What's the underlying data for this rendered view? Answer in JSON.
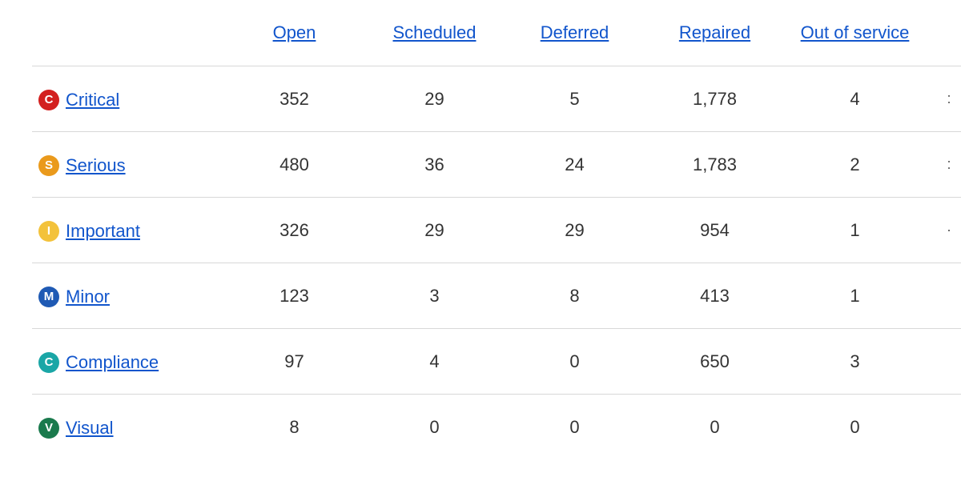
{
  "link_color": "#1155cc",
  "border_color": "#d8d8d8",
  "text_color": "#333333",
  "columns": [
    {
      "key": "open",
      "label": "Open"
    },
    {
      "key": "scheduled",
      "label": "Scheduled"
    },
    {
      "key": "deferred",
      "label": "Deferred"
    },
    {
      "key": "repaired",
      "label": "Repaired"
    },
    {
      "key": "outsvc",
      "label": "Out of service"
    }
  ],
  "rows": [
    {
      "key": "critical",
      "label": "Critical",
      "badge_letter": "C",
      "badge_color": "#d3201f",
      "values": [
        "352",
        "29",
        "5",
        "1,778",
        "4"
      ],
      "trail": ":"
    },
    {
      "key": "serious",
      "label": "Serious",
      "badge_letter": "S",
      "badge_color": "#ea9a1c",
      "values": [
        "480",
        "36",
        "24",
        "1,783",
        "2"
      ],
      "trail": ":"
    },
    {
      "key": "important",
      "label": "Important",
      "badge_letter": "I",
      "badge_color": "#f3c23b",
      "values": [
        "326",
        "29",
        "29",
        "954",
        "1"
      ],
      "trail": "·"
    },
    {
      "key": "minor",
      "label": "Minor",
      "badge_letter": "M",
      "badge_color": "#1f5ab4",
      "values": [
        "123",
        "3",
        "8",
        "413",
        "1"
      ],
      "trail": ""
    },
    {
      "key": "compliance",
      "label": "Compliance",
      "badge_letter": "C",
      "badge_color": "#1aa6a6",
      "values": [
        "97",
        "4",
        "0",
        "650",
        "3"
      ],
      "trail": ""
    },
    {
      "key": "visual",
      "label": "Visual",
      "badge_letter": "V",
      "badge_color": "#1a7a4d",
      "values": [
        "8",
        "0",
        "0",
        "0",
        "0"
      ],
      "trail": ""
    }
  ]
}
